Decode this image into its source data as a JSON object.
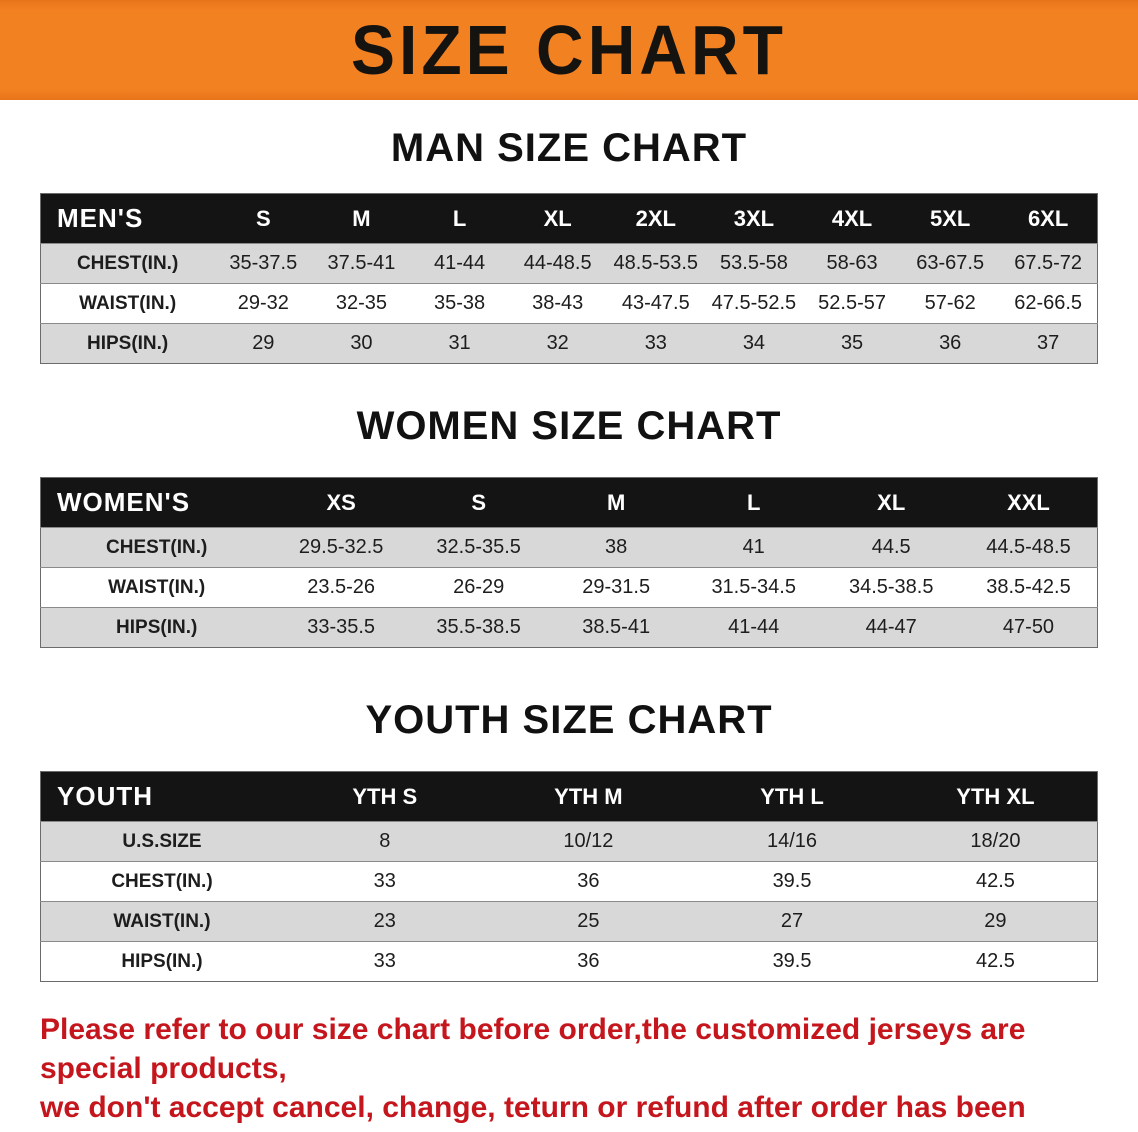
{
  "banner": {
    "title": "SIZE CHART"
  },
  "sections": [
    {
      "heading": "MAN SIZE CHART",
      "table": {
        "header": [
          "MEN'S",
          "S",
          "M",
          "L",
          "XL",
          "2XL",
          "3XL",
          "4XL",
          "5XL",
          "6XL"
        ],
        "rows": [
          [
            "CHEST(IN.)",
            "35-37.5",
            "37.5-41",
            "41-44",
            "44-48.5",
            "48.5-53.5",
            "53.5-58",
            "58-63",
            "63-67.5",
            "67.5-72"
          ],
          [
            "WAIST(IN.)",
            "29-32",
            "32-35",
            "35-38",
            "38-43",
            "43-47.5",
            "47.5-52.5",
            "52.5-57",
            "57-62",
            "62-66.5"
          ],
          [
            "HIPS(IN.)",
            "29",
            "30",
            "31",
            "32",
            "33",
            "34",
            "35",
            "36",
            "37"
          ]
        ]
      }
    },
    {
      "heading": "WOMEN SIZE CHART",
      "table": {
        "header": [
          "WOMEN'S",
          "XS",
          "S",
          "M",
          "L",
          "XL",
          "XXL"
        ],
        "rows": [
          [
            "CHEST(IN.)",
            "29.5-32.5",
            "32.5-35.5",
            "38",
            "41",
            "44.5",
            "44.5-48.5"
          ],
          [
            "WAIST(IN.)",
            "23.5-26",
            "26-29",
            "29-31.5",
            "31.5-34.5",
            "34.5-38.5",
            "38.5-42.5"
          ],
          [
            "HIPS(IN.)",
            "33-35.5",
            "35.5-38.5",
            "38.5-41",
            "41-44",
            "44-47",
            "47-50"
          ]
        ]
      }
    },
    {
      "heading": "YOUTH SIZE CHART",
      "table": {
        "header": [
          "YOUTH",
          "YTH S",
          "YTH M",
          "YTH L",
          "YTH XL"
        ],
        "rows": [
          [
            "U.S.SIZE",
            "8",
            "10/12",
            "14/16",
            "18/20"
          ],
          [
            "CHEST(IN.)",
            "33",
            "36",
            "39.5",
            "42.5"
          ],
          [
            "WAIST(IN.)",
            "23",
            "25",
            "27",
            "29"
          ],
          [
            "HIPS(IN.)",
            "33",
            "36",
            "39.5",
            "42.5"
          ]
        ]
      }
    }
  ],
  "footer": {
    "lines": [
      "Please refer to our size chart before order,the customized jerseys are special products,",
      "we don't accept cancel, change, teturn or refund after order has been placed!"
    ]
  },
  "colors": {
    "banner_bg": "#f28122",
    "table_header_bg": "#141414",
    "row_stripe": "#d8d8d8",
    "notice_text": "#c4161c"
  }
}
